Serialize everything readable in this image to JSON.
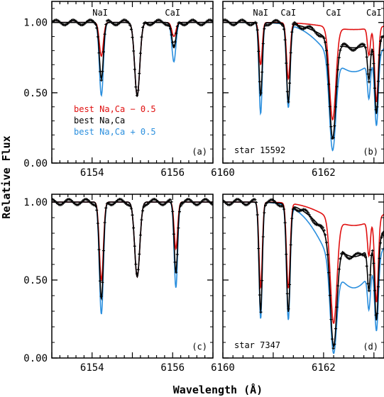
{
  "figure": {
    "ylabel": "Relative Flux",
    "xlabel": "Wavelength (Å)"
  },
  "colors": {
    "minus": "#e01010",
    "best": "#000000",
    "plus": "#2b8fde"
  },
  "legend": {
    "minus": "best Na,Ca − 0.5",
    "best": "best Na,Ca",
    "plus": "best Na,Ca + 0.5"
  },
  "chart_data": [
    {
      "type": "line",
      "panel_label": "(a)",
      "star_label": "",
      "xlim": [
        6153,
        6157
      ],
      "ylim": [
        0,
        1.15
      ],
      "xticks": [
        6154,
        6156
      ],
      "yticks": [
        0,
        0.5,
        1
      ],
      "ytick_labels": [
        "0.00",
        "0.50",
        "1.00"
      ],
      "line_annotations": [
        {
          "text": "NaI",
          "x": 6154.2
        },
        {
          "text": "CaI",
          "x": 6156.0
        }
      ],
      "lines": [
        {
          "x": 6154.23,
          "w": 0.07,
          "d": [
            0.24,
            0.4,
            0.52
          ],
          "obs": 0.4
        },
        {
          "x": 6155.12,
          "w": 0.09,
          "d": [
            0.52,
            0.52,
            0.52
          ],
          "obs": 0.5
        },
        {
          "x": 6156.03,
          "w": 0.07,
          "d": [
            0.1,
            0.18,
            0.28
          ],
          "obs": 0.2
        }
      ],
      "series": [
        {
          "name": "best Na,Ca − 0.5",
          "key": "minus"
        },
        {
          "name": "best Na,Ca",
          "key": "best"
        },
        {
          "name": "best Na,Ca + 0.5",
          "key": "plus"
        }
      ]
    },
    {
      "type": "line",
      "panel_label": "(b)",
      "star_label": "star 15592",
      "xlim": [
        6160,
        6163.2
      ],
      "ylim": [
        0,
        1.15
      ],
      "xticks": [
        6160,
        6162
      ],
      "yticks": [
        0,
        0.5,
        1
      ],
      "ytick_labels": [
        "",
        "",
        ""
      ],
      "line_annotations": [
        {
          "text": "NaI",
          "x": 6160.75
        },
        {
          "text": "CaI",
          "x": 6161.3
        },
        {
          "text": "CaI",
          "x": 6162.2
        },
        {
          "text": "CaI",
          "x": 6163.0
        }
      ],
      "lines": [
        {
          "x": 6160.75,
          "w": 0.045,
          "d": [
            0.3,
            0.52,
            0.65
          ],
          "obs": 0.5
        },
        {
          "x": 6161.3,
          "w": 0.05,
          "d": [
            0.4,
            0.56,
            0.6
          ],
          "obs": 0.58
        },
        {
          "x": 6162.18,
          "w": 0.09,
          "d": [
            0.68,
            0.8,
            0.88
          ],
          "obs": 0.82
        },
        {
          "x": 6162.6,
          "w": 0.75,
          "d": [
            0.05,
            0.18,
            0.35
          ],
          "obs": 0.18
        },
        {
          "x": 6162.9,
          "w": 0.04,
          "d": [
            0.2,
            0.3,
            0.35
          ],
          "obs": 0.32
        },
        {
          "x": 6163.05,
          "w": 0.05,
          "d": [
            0.55,
            0.6,
            0.65
          ],
          "obs": 0.6
        }
      ],
      "series": [
        {
          "name": "best Na,Ca − 0.5",
          "key": "minus"
        },
        {
          "name": "best Na,Ca",
          "key": "best"
        },
        {
          "name": "best Na,Ca + 0.5",
          "key": "plus"
        }
      ]
    },
    {
      "type": "line",
      "panel_label": "(c)",
      "star_label": "",
      "xlim": [
        6153,
        6157
      ],
      "ylim": [
        0,
        1.05
      ],
      "xticks": [
        6154,
        6156
      ],
      "yticks": [
        0,
        0.5,
        1
      ],
      "ytick_labels": [
        "0.00",
        "0.50",
        "1.00"
      ],
      "line_annotations": [],
      "lines": [
        {
          "x": 6154.23,
          "w": 0.07,
          "d": [
            0.5,
            0.62,
            0.72
          ],
          "obs": 0.62
        },
        {
          "x": 6155.12,
          "w": 0.09,
          "d": [
            0.48,
            0.48,
            0.48
          ],
          "obs": 0.45
        },
        {
          "x": 6156.08,
          "w": 0.06,
          "d": [
            0.3,
            0.45,
            0.55
          ],
          "obs": 0.45
        }
      ],
      "series": [
        {
          "name": "best Na,Ca − 0.5",
          "key": "minus"
        },
        {
          "name": "best Na,Ca",
          "key": "best"
        },
        {
          "name": "best Na,Ca + 0.5",
          "key": "plus"
        }
      ]
    },
    {
      "type": "line",
      "panel_label": "(d)",
      "star_label": "star 7347",
      "xlim": [
        6160,
        6163.2
      ],
      "ylim": [
        0,
        1.05
      ],
      "xticks": [
        6160,
        6162
      ],
      "yticks": [
        0,
        0.5,
        1
      ],
      "ytick_labels": [
        "",
        "",
        ""
      ],
      "line_annotations": [],
      "lines": [
        {
          "x": 6160.75,
          "w": 0.045,
          "d": [
            0.55,
            0.7,
            0.75
          ],
          "obs": 0.7
        },
        {
          "x": 6161.3,
          "w": 0.05,
          "d": [
            0.55,
            0.7,
            0.75
          ],
          "obs": 0.7
        },
        {
          "x": 6162.2,
          "w": 0.09,
          "d": [
            0.75,
            0.9,
            0.95
          ],
          "obs": 0.92
        },
        {
          "x": 6162.6,
          "w": 0.75,
          "d": [
            0.15,
            0.35,
            0.55
          ],
          "obs": 0.38
        },
        {
          "x": 6162.9,
          "w": 0.04,
          "d": [
            0.25,
            0.38,
            0.42
          ],
          "obs": 0.4
        },
        {
          "x": 6163.05,
          "w": 0.05,
          "d": [
            0.6,
            0.68,
            0.72
          ],
          "obs": 0.68
        }
      ],
      "series": [
        {
          "name": "best Na,Ca − 0.5",
          "key": "minus"
        },
        {
          "name": "best Na,Ca",
          "key": "best"
        },
        {
          "name": "best Na,Ca + 0.5",
          "key": "plus"
        }
      ]
    }
  ]
}
